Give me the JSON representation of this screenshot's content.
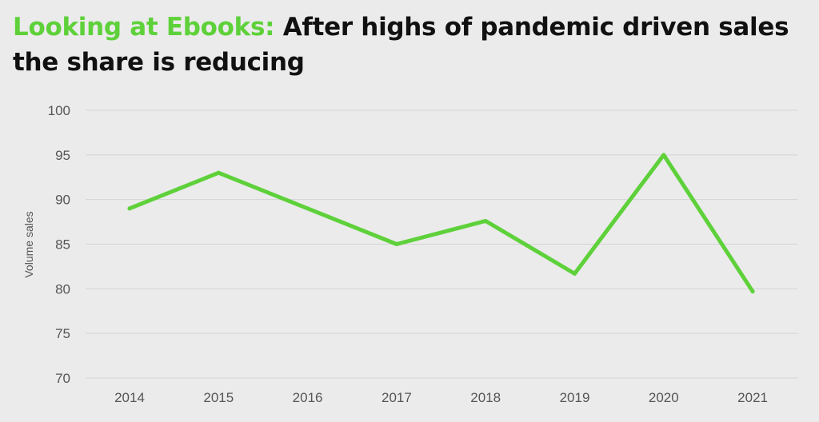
{
  "title": {
    "highlight": "Looking at Ebooks:",
    "rest": "After highs of pandemic driven sales the share is reducing"
  },
  "colors": {
    "accent": "#5ed13a",
    "title_text": "#111111",
    "background": "#ebebeb",
    "grid": "#d4d4d4",
    "tick_text": "#555555"
  },
  "chart_data": {
    "type": "line",
    "title": "",
    "xlabel": "",
    "ylabel": "Volume sales",
    "categories": [
      "2014",
      "2015",
      "2016",
      "2017",
      "2018",
      "2019",
      "2020",
      "2021"
    ],
    "series": [
      {
        "values": [
          89,
          93,
          89,
          85,
          87.6,
          81.7,
          95,
          79.7
        ]
      }
    ],
    "ylim": [
      70,
      100
    ],
    "yticks": [
      70,
      75,
      80,
      85,
      90,
      95,
      100
    ],
    "grid": true,
    "legend": "none"
  }
}
